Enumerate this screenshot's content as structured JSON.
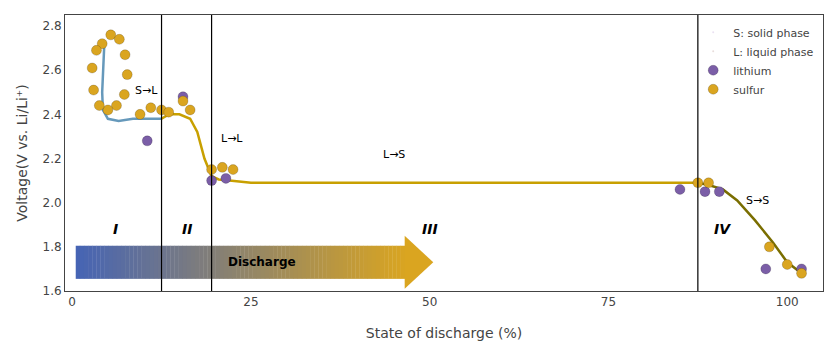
{
  "chart_data": {
    "type": "line",
    "title": "",
    "xlabel": "State of discharge (%)",
    "ylabel": "Voltage(V vs. Li/Li⁺)",
    "xlim": [
      -1,
      105
    ],
    "ylim": [
      1.6,
      2.85
    ],
    "xticks": [
      0,
      25,
      50,
      75,
      100
    ],
    "yticks": [
      1.6,
      1.8,
      {
        "value": 2.0,
        "label": "2.0"
      },
      2.2,
      2.4,
      2.6,
      2.8
    ],
    "grid": false,
    "legend": "upper right",
    "series": [
      {
        "type": "line",
        "color": "#6699BB",
        "x": [
          4.5,
          4.3,
          4.2,
          4.3,
          5.0,
          6.5,
          8.5,
          10.5,
          12.0,
          12.5
        ],
        "values": [
          2.72,
          2.6,
          2.5,
          2.42,
          2.38,
          2.37,
          2.38,
          2.38,
          2.38,
          2.38
        ]
      },
      {
        "type": "line",
        "color": "#C8A000",
        "x": [
          12.5,
          13.5,
          15.0,
          16.5,
          17.5,
          18.5,
          19.5
        ],
        "values": [
          2.38,
          2.4,
          2.4,
          2.38,
          2.32,
          2.2,
          2.12
        ]
      },
      {
        "type": "line",
        "color": "#C8A000",
        "x": [
          19.5,
          20.5,
          22.0,
          25.0,
          35.0,
          50.0,
          65.0,
          80.0,
          87.5
        ],
        "values": [
          2.12,
          2.105,
          2.1,
          2.09,
          2.09,
          2.09,
          2.09,
          2.09,
          2.09
        ]
      },
      {
        "type": "line",
        "color": "#7A6E00",
        "x": [
          87.5,
          89.0,
          91.0,
          93.0,
          95.5,
          98.0,
          100.0,
          102.0
        ],
        "values": [
          2.09,
          2.08,
          2.06,
          2.01,
          1.92,
          1.82,
          1.73,
          1.68
        ]
      },
      {
        "type": "scatter",
        "name": "S: solid phase",
        "marker": "none",
        "x": [],
        "values": []
      },
      {
        "type": "scatter",
        "name": "L: liquid phase",
        "marker": "none",
        "x": [],
        "values": []
      },
      {
        "type": "scatter",
        "name": "lithium",
        "marker": "circle",
        "color": "#7B5EA7",
        "x": [
          10.5,
          15.5,
          19.5,
          21.5,
          85.0,
          88.5,
          90.5,
          97.0,
          102.0
        ],
        "values": [
          2.28,
          2.48,
          2.1,
          2.11,
          2.06,
          2.05,
          2.05,
          1.7,
          1.7
        ]
      },
      {
        "type": "scatter",
        "name": "sulfur",
        "marker": "circle",
        "color": "#DAA520",
        "x": [
          4.2,
          5.4,
          6.6,
          7.4,
          7.7,
          7.3,
          6.2,
          5.0,
          3.8,
          3.0,
          2.8,
          3.4,
          9.5,
          11.0,
          12.5,
          13.5,
          15.5,
          16.5,
          19.5,
          21.0,
          22.5,
          87.5,
          89.0,
          97.5,
          100.0,
          102.0
        ],
        "values": [
          2.72,
          2.76,
          2.74,
          2.67,
          2.58,
          2.49,
          2.44,
          2.42,
          2.44,
          2.51,
          2.61,
          2.69,
          2.4,
          2.43,
          2.42,
          2.41,
          2.46,
          2.42,
          2.15,
          2.16,
          2.15,
          2.09,
          2.09,
          1.8,
          1.72,
          1.68
        ]
      }
    ],
    "vertical_lines": [
      12.5,
      19.5,
      87.5
    ],
    "region_labels": [
      {
        "text": "I",
        "x": 6,
        "y": 1.88
      },
      {
        "text": "II",
        "x": 16,
        "y": 1.88
      },
      {
        "text": "III",
        "x": 50,
        "y": 1.88
      },
      {
        "text": "IV",
        "x": 91,
        "y": 1.88
      }
    ],
    "annotations": [
      {
        "text": "S→L",
        "x": 8.5,
        "y": 2.47,
        "align": "left"
      },
      {
        "text": "L→L",
        "x": 20.5,
        "y": 2.25,
        "align": "left"
      },
      {
        "text": "L→S",
        "x": 45,
        "y": 2.18,
        "align": "center"
      },
      {
        "text": "S→S",
        "x": 94,
        "y": 1.97,
        "align": "left"
      }
    ],
    "arrow": {
      "x_start": 0.5,
      "body_end": 46.5,
      "x_end": 50.5,
      "y": 1.73,
      "height": 0.075,
      "colors": [
        "#4664B4",
        "#DAA520"
      ],
      "label": {
        "text": "Discharge",
        "x": 26.5,
        "y": 1.73
      }
    }
  }
}
